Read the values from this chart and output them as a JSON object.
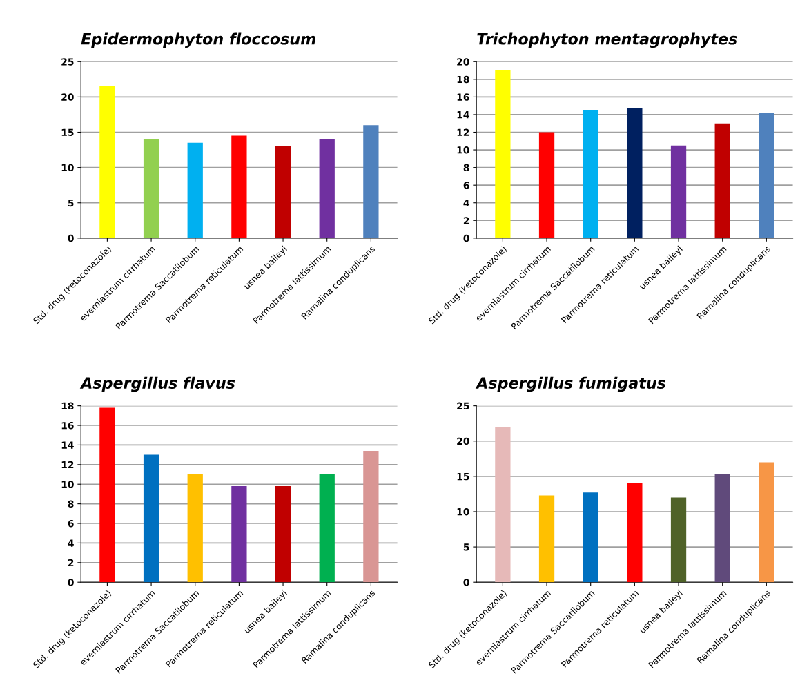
{
  "chart_data": [
    {
      "type": "bar",
      "title": "Epidermophyton floccosum",
      "categories": [
        "Std. drug (ketoconazole)",
        "everniastrum cirrhatum",
        "Parmotrema Saccatilobum",
        "Parmotrema reticulatum",
        "usnea baileyi",
        "Parmotrema lattissimum",
        "Ramalina conduplicans"
      ],
      "values": [
        21.5,
        14,
        13.5,
        14.5,
        13,
        14,
        16
      ],
      "colors": [
        "#ffff00",
        "#92d050",
        "#00b0f0",
        "#ff0000",
        "#c00000",
        "#7030a0",
        "#4f81bd"
      ],
      "ylim": [
        0,
        25
      ],
      "yticks": [
        0,
        5,
        10,
        15,
        20,
        25
      ],
      "grid": "y"
    },
    {
      "type": "bar",
      "title": "Trichophyton mentagrophytes",
      "categories": [
        "Std. drug (ketoconazole)",
        "everniastrum cirrhatum",
        "Parmotrema Saccatilobum",
        "Parmotrema reticulatum",
        "usnea baileyi",
        "Parmotrema lattissimum",
        "Ramalina conduplicans"
      ],
      "values": [
        19,
        12,
        14.5,
        14.7,
        10.5,
        13,
        14.2
      ],
      "colors": [
        "#ffff00",
        "#ff0000",
        "#00b0f0",
        "#002060",
        "#7030a0",
        "#c00000",
        "#4f81bd"
      ],
      "ylim": [
        0,
        20
      ],
      "yticks": [
        0,
        2,
        4,
        6,
        8,
        10,
        12,
        14,
        16,
        18,
        20
      ],
      "grid": "y"
    },
    {
      "type": "bar",
      "title": "Aspergillus flavus",
      "categories": [
        "Std. drug (ketoconazole)",
        "everniastrum cirrhatum",
        "Parmotrema Saccatilobum",
        "Parmotrema reticulatum",
        "usnea baileyi",
        "Parmotrema lattissimum",
        "Ramalina conduplicans"
      ],
      "values": [
        17.8,
        13,
        11,
        9.8,
        9.8,
        11,
        13.4
      ],
      "colors": [
        "#ff0000",
        "#0070c0",
        "#ffc000",
        "#7030a0",
        "#c00000",
        "#00b050",
        "#d99694"
      ],
      "ylim": [
        0,
        18
      ],
      "yticks": [
        0,
        2,
        4,
        6,
        8,
        10,
        12,
        14,
        16,
        18
      ],
      "grid": "y"
    },
    {
      "type": "bar",
      "title": "Aspergillus fumigatus",
      "categories": [
        "Std. drug (ketoconazole)",
        "everniastrum cirrhatum",
        "Parmotrema Saccatilobum",
        "Parmotrema reticulatum",
        "usnea baileyi",
        "Parmotrema lattissimum",
        "Ramalina conduplicans"
      ],
      "values": [
        22,
        12.3,
        12.7,
        14,
        12,
        15.3,
        17
      ],
      "colors": [
        "#e6b9b8",
        "#ffc000",
        "#0070c0",
        "#ff0000",
        "#4f6228",
        "#604a7b",
        "#f79646"
      ],
      "ylim": [
        0,
        25
      ],
      "yticks": [
        0,
        5,
        10,
        15,
        20,
        25
      ],
      "grid": "y"
    }
  ]
}
